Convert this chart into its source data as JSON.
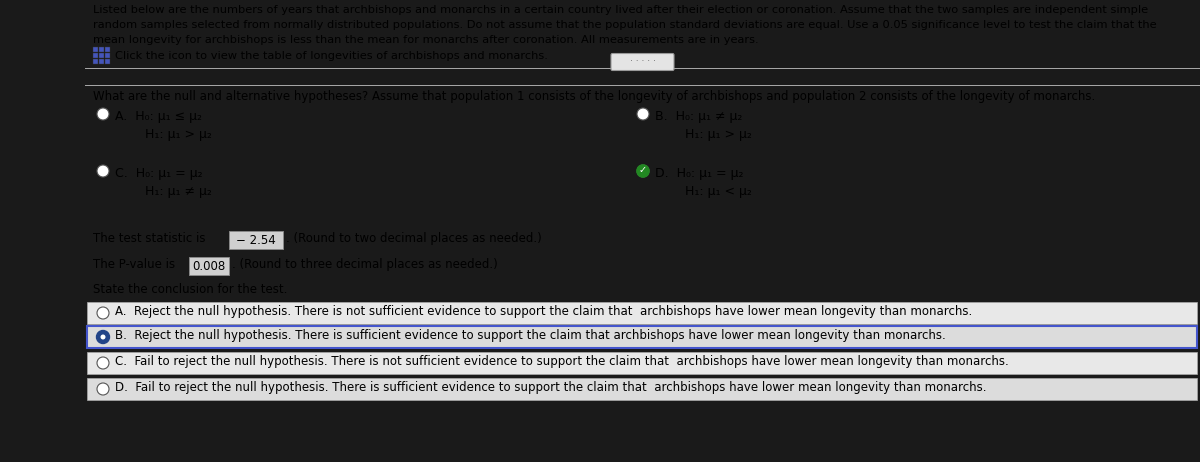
{
  "header_line1": "Listed below are the numbers of years that archbishops and monarchs in a certain country lived after their election or coronation. Assume that the two samples are independent simple",
  "header_line2": "random samples selected from normally distributed populations. Do not assume that the population standard deviations are equal. Use a 0.05 significance level to test the claim that the",
  "header_line3": "mean longevity for archbishops is less than the mean for monarchs after coronation. All measurements are in years.",
  "icon_label": "Click the icon to view the table of longevities of archbishops and monarchs.",
  "question": "What are the null and alternative hypotheses? Assume that population 1 consists of the longevity of archbishops and population 2 consists of the longevity of monarchs.",
  "opt_A_line1": "H₀: μ₁ ≤ μ₂",
  "opt_A_line2": "H₁: μ₁ > μ₂",
  "opt_B_line1": "H₀: μ₁ ≠ μ₂",
  "opt_B_line2": "H₁: μ₁ > μ₂",
  "opt_C_line1": "H₀: μ₁ = μ₂",
  "opt_C_line2": "H₁: μ₁ ≠ μ₂",
  "opt_D_line1": "H₀: μ₁ = μ₂",
  "opt_D_line2": "H₁: μ₁ < μ₂",
  "ts_label": "The test statistic is",
  "ts_value": "− 2.54",
  "ts_suffix": ". (Round to two decimal places as needed.)",
  "pv_label": "The P-value is",
  "pv_value": "0.008",
  "pv_suffix": ". (Round to three decimal places as needed.)",
  "concl_label": "State the conclusion for the test.",
  "concl_A": "A.  Reject the null hypothesis. There is not sufficient evidence to support the claim that  archbishops have lower mean longevity than monarchs.",
  "concl_B": "B.  Reject the null hypothesis. There is sufficient evidence to support the claim that archbishops have lower mean longevity than monarchs.",
  "concl_C": "C.  Fail to reject the null hypothesis. There is not sufficient evidence to support the claim that  archbishops have lower mean longevity than monarchs.",
  "concl_D": "D.  Fail to reject the null hypothesis. There is sufficient evidence to support the claim that  archbishops have lower mean longevity than monarchs.",
  "dark_panel_color": "#1a1a1a",
  "content_bg": "#dcdcdc",
  "stripe_bg": "#d4d4d4",
  "selected_hyp": "D",
  "selected_concl": "B"
}
